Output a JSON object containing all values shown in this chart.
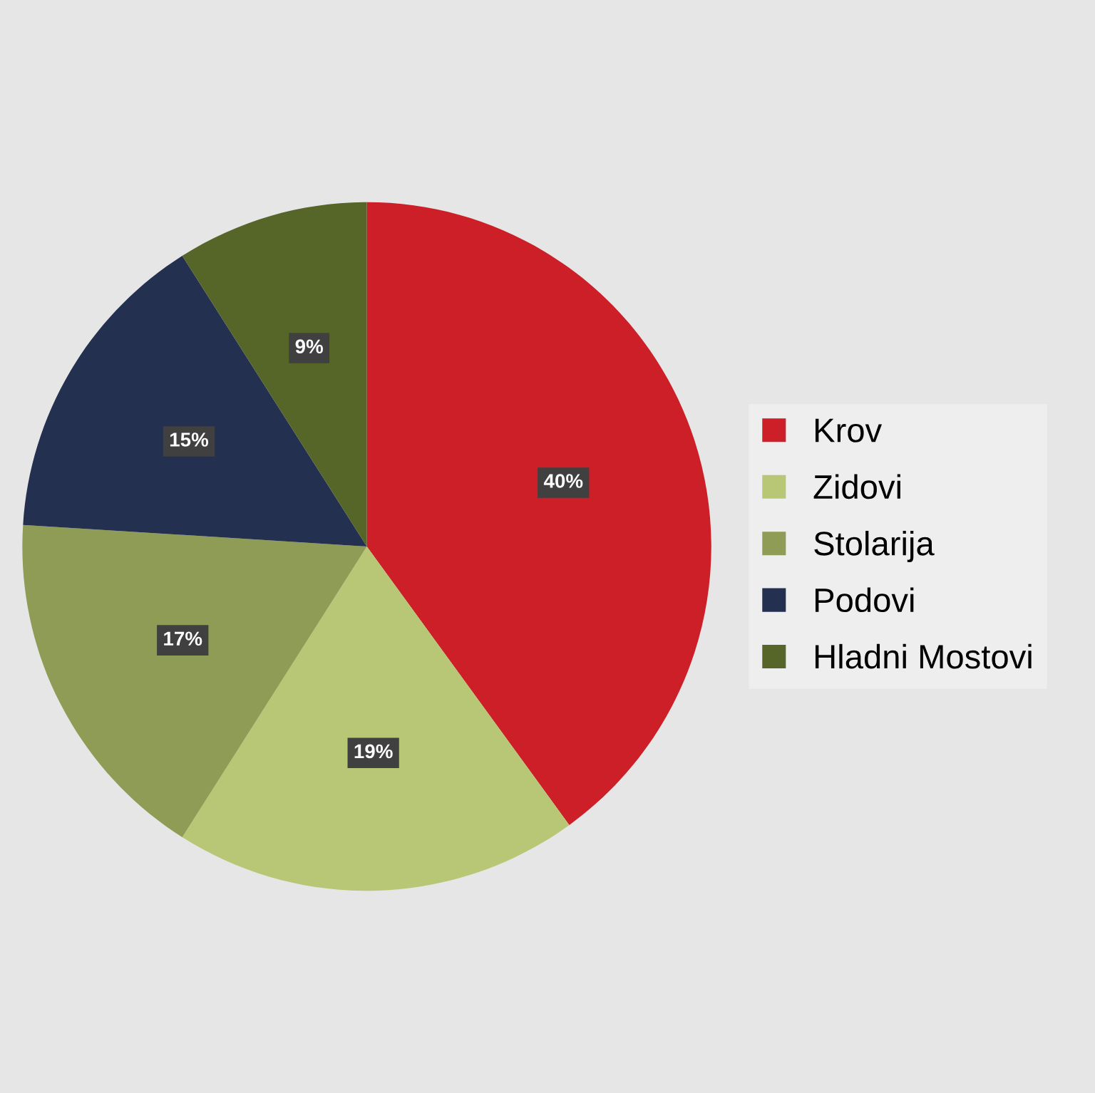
{
  "chart_data": {
    "type": "pie",
    "categories": [
      "Krov",
      "Zidovi",
      "Stolarija",
      "Podovi",
      "Hladni Mostovi"
    ],
    "values": [
      40,
      19,
      17,
      15,
      9
    ],
    "colors": [
      "#cc1f27",
      "#b8c775",
      "#8e9c55",
      "#243050",
      "#566528"
    ],
    "value_labels": [
      "40%",
      "19%",
      "17%",
      "15%",
      "9%"
    ],
    "legend": "right"
  }
}
